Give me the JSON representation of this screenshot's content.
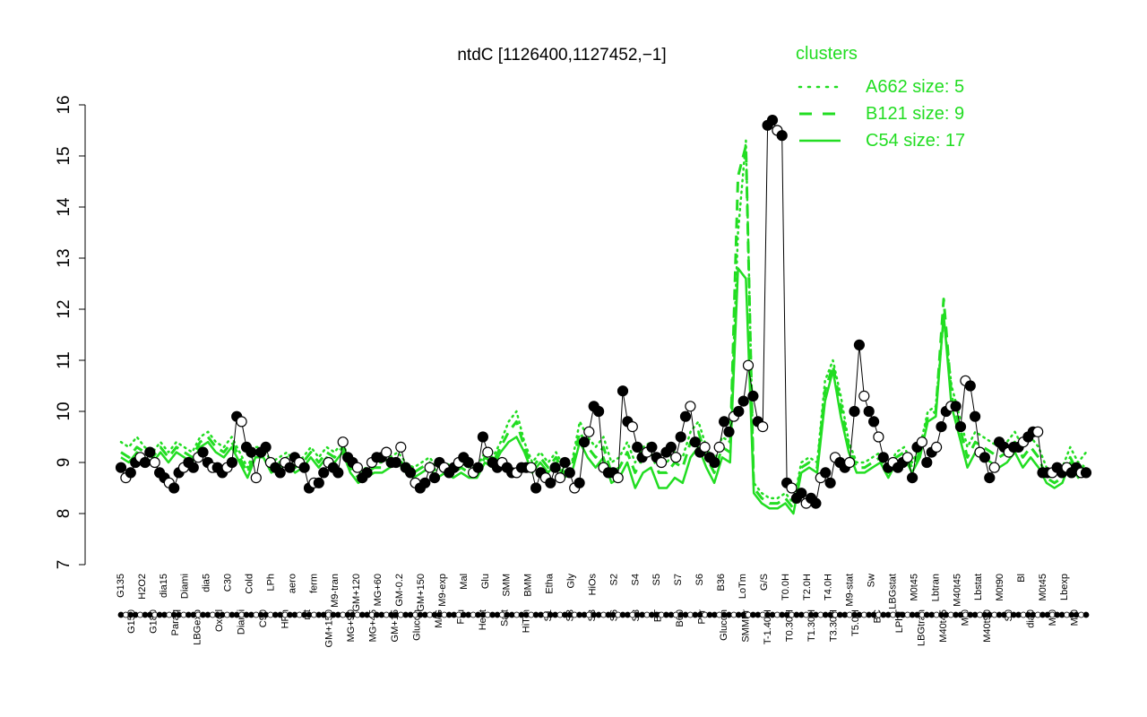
{
  "chart_data": {
    "type": "line",
    "title": "ntdC [1126400,1127452,−1]",
    "xlabel": "",
    "ylabel": "",
    "ylim": [
      7,
      16
    ],
    "yticks": [
      7,
      8,
      9,
      10,
      11,
      12,
      13,
      14,
      15,
      16
    ],
    "grid": false,
    "legend": {
      "title": "clusters",
      "placement": "top-right",
      "entries": [
        {
          "label": "A662 size: 5",
          "style": "dotted"
        },
        {
          "label": "B121 size: 9",
          "style": "dashed"
        },
        {
          "label": "C54 size: 17",
          "style": "solid"
        }
      ]
    },
    "colors": {
      "series": "#22dd22",
      "points": "#000000",
      "legend": "#22dd22"
    },
    "ticks_top": [
      "G135",
      "H2O2",
      "dia15",
      "Diami",
      "dia5",
      "C30",
      "Cold",
      "LPh",
      "aero",
      "ferm",
      "M9-tran",
      "GM+120",
      "MG+60",
      "GM-0.2",
      "GM+150",
      "M9-exp",
      "Mal",
      "Glu",
      "SMM",
      "BMM",
      "Etha",
      "Gly",
      "HiOs",
      "S2",
      "S4",
      "S5",
      "S7",
      "S6",
      "B36",
      "LoTm",
      "G/S",
      "T0.0H",
      "T2.0H",
      "T4.0H",
      "M9-stat",
      "Sw",
      "LBGstat",
      "M0t45",
      "Lbtran",
      "M40t45",
      "Lbstat",
      "M0t90",
      "Bl",
      "M0t45",
      "Lbexp"
    ],
    "ticks_bottom": [
      "G150",
      "G180",
      "Paraq",
      "LBGexp",
      "Oxctl",
      "Diami",
      "C90",
      "HPh",
      "nit",
      "GM+150",
      "MG+90",
      "MG+45",
      "GM+15",
      "Glucon",
      "M/G",
      "Fru",
      "Heat",
      "Salt",
      "HiTm",
      "S1",
      "S3",
      "S3",
      "S6",
      "S8",
      "BT",
      "B60",
      "Pyr",
      "Glucon",
      "SMMPr",
      "T-1.40H",
      "T0.30H",
      "T1.30H",
      "T3.30H",
      "T5.0H",
      "BC",
      "LPhT",
      "LBGtran",
      "M40t45",
      "Mt0",
      "M40t90",
      "S0",
      "dia0",
      "Mt0",
      "Mt0"
    ],
    "series": [
      {
        "name": "A662 size: 5",
        "values": [
          9.4,
          9.3,
          9.5,
          9.3,
          9.2,
          9.4,
          9.2,
          9.4,
          9.3,
          9.2,
          9.5,
          9.6,
          9.4,
          9.3,
          9.5,
          9.2,
          8.9,
          9.3,
          9.3,
          9.0,
          9.1,
          9.2,
          9.0,
          9.1,
          9.3,
          9.1,
          9.3,
          9.2,
          9.4,
          9.0,
          8.8,
          8.9,
          9.0,
          9.0,
          9.1,
          9.2,
          9.0,
          8.9,
          9.0,
          9.1,
          8.9,
          9.0,
          8.9,
          9.0,
          8.9,
          8.9,
          9.2,
          9.1,
          9.4,
          9.8,
          10.0,
          9.4,
          9.0,
          9.2,
          9.0,
          9.2,
          8.9,
          9.0,
          9.8,
          9.5,
          9.3,
          9.5,
          9.0,
          9.1,
          9.4,
          9.0,
          9.3,
          9.4,
          9.0,
          9.0,
          9.2,
          9.1,
          9.6,
          9.8,
          9.3,
          9.0,
          9.5,
          9.4,
          13.5,
          15.3,
          8.6,
          8.4,
          8.3,
          8.3,
          8.4,
          8.2,
          9.0,
          9.1,
          9.0,
          10.6,
          11.0,
          10.3,
          9.4,
          9.0,
          9.0,
          9.1,
          9.2,
          8.9,
          9.2,
          9.3,
          9.0,
          9.3,
          10.0,
          10.1,
          11.8,
          10.5,
          9.9,
          9.3,
          9.6,
          9.5,
          9.4,
          9.3,
          9.4,
          9.6,
          9.3,
          9.5,
          9.3,
          8.9,
          8.8,
          8.9,
          9.3,
          9.0,
          9.2
        ]
      },
      {
        "name": "B121 size: 9",
        "values": [
          9.2,
          9.1,
          9.3,
          9.2,
          9.1,
          9.3,
          9.1,
          9.3,
          9.2,
          9.1,
          9.4,
          9.5,
          9.3,
          9.2,
          9.4,
          9.1,
          8.8,
          9.2,
          9.2,
          8.9,
          9.0,
          9.1,
          8.9,
          9.0,
          9.2,
          9.0,
          9.2,
          9.1,
          9.3,
          8.9,
          8.7,
          8.8,
          8.9,
          8.9,
          9.0,
          9.1,
          8.9,
          8.8,
          8.9,
          9.0,
          8.8,
          8.9,
          8.8,
          8.9,
          8.8,
          8.8,
          9.1,
          9.0,
          9.3,
          9.6,
          9.8,
          9.3,
          8.9,
          9.1,
          8.9,
          9.1,
          8.8,
          8.9,
          9.6,
          9.3,
          9.1,
          9.3,
          8.8,
          8.9,
          9.2,
          8.8,
          9.1,
          9.2,
          8.8,
          8.8,
          9.0,
          8.9,
          9.4,
          9.6,
          9.1,
          8.8,
          9.3,
          9.2,
          14.6,
          15.2,
          8.5,
          8.3,
          8.2,
          8.2,
          8.3,
          8.1,
          8.9,
          9.0,
          8.9,
          10.4,
          10.9,
          10.1,
          9.3,
          8.9,
          8.9,
          9.0,
          9.1,
          8.8,
          9.1,
          9.2,
          8.9,
          9.2,
          9.9,
          10.0,
          12.2,
          10.3,
          9.7,
          9.1,
          9.4,
          9.3,
          9.2,
          9.1,
          9.2,
          9.4,
          9.1,
          9.3,
          9.1,
          8.7,
          8.6,
          8.7,
          9.1,
          8.8,
          9.0
        ]
      },
      {
        "name": "C54 size: 17",
        "values": [
          9.1,
          9.0,
          9.2,
          9.1,
          9.0,
          9.2,
          9.0,
          9.2,
          9.1,
          9.0,
          9.3,
          9.4,
          9.2,
          9.1,
          9.3,
          9.0,
          8.7,
          9.1,
          9.1,
          8.8,
          8.9,
          9.0,
          8.8,
          8.9,
          9.1,
          8.9,
          9.1,
          9.0,
          9.2,
          8.8,
          8.6,
          8.7,
          8.8,
          8.8,
          8.9,
          9.0,
          8.8,
          8.7,
          8.8,
          8.9,
          8.7,
          8.8,
          8.7,
          8.8,
          8.7,
          8.7,
          9.0,
          8.9,
          9.2,
          9.4,
          9.5,
          9.2,
          8.8,
          9.0,
          8.8,
          9.0,
          8.7,
          8.8,
          9.4,
          9.1,
          8.9,
          9.1,
          8.6,
          8.7,
          9.0,
          8.5,
          8.8,
          8.9,
          8.5,
          8.5,
          8.7,
          8.6,
          9.1,
          9.3,
          8.9,
          8.6,
          9.1,
          9.0,
          12.8,
          12.6,
          8.4,
          8.2,
          8.1,
          8.1,
          8.2,
          8.0,
          8.8,
          8.9,
          8.8,
          10.2,
          10.8,
          9.9,
          9.2,
          8.8,
          8.8,
          8.9,
          9.0,
          8.7,
          9.0,
          9.1,
          8.8,
          9.1,
          9.8,
          9.9,
          11.9,
          10.1,
          9.5,
          8.9,
          9.2,
          9.1,
          9.0,
          8.9,
          9.0,
          9.2,
          8.9,
          9.1,
          8.9,
          8.6,
          8.5,
          8.6,
          9.0,
          8.7,
          8.9
        ]
      }
    ],
    "points": [
      8.9,
      8.7,
      8.8,
      9.0,
      9.1,
      9.0,
      9.2,
      9.0,
      8.8,
      8.7,
      8.6,
      8.5,
      8.8,
      8.9,
      9.0,
      8.9,
      9.1,
      9.2,
      9.0,
      8.9,
      8.9,
      8.8,
      8.9,
      9.0,
      9.9,
      9.8,
      9.3,
      9.2,
      8.7,
      9.2,
      9.3,
      9.0,
      8.9,
      8.8,
      9.0,
      8.9,
      9.1,
      9.0,
      8.9,
      8.5,
      8.6,
      8.6,
      8.8,
      9.0,
      8.9,
      8.8,
      9.4,
      9.1,
      9.0,
      8.9,
      8.7,
      8.8,
      9.0,
      9.1,
      9.1,
      9.2,
      9.0,
      9.0,
      9.3,
      8.9,
      8.8,
      8.6,
      8.5,
      8.6,
      8.9,
      8.7,
      9.0,
      8.9,
      8.8,
      8.9,
      9.0,
      9.1,
      9.0,
      8.8,
      8.9,
      9.5,
      9.2,
      9.0,
      8.9,
      9.0,
      8.9,
      8.8,
      8.8,
      8.9,
      8.9,
      8.9,
      8.5,
      8.8,
      8.7,
      8.6,
      8.9,
      8.7,
      9.0,
      8.8,
      8.5,
      8.6,
      9.4,
      9.6,
      10.1,
      10.0,
      8.9,
      8.8,
      8.8,
      8.7,
      10.4,
      9.8,
      9.7,
      9.3,
      9.1,
      9.2,
      9.3,
      9.1,
      9.0,
      9.2,
      9.3,
      9.1,
      9.5,
      9.9,
      10.1,
      9.4,
      9.2,
      9.3,
      9.1,
      9.0,
      9.3,
      9.8,
      9.6,
      9.9,
      10.0,
      10.2,
      10.9,
      10.3,
      9.8,
      9.7,
      15.6,
      15.7,
      15.5,
      15.4,
      8.6,
      8.5,
      8.3,
      8.4,
      8.2,
      8.3,
      8.2,
      8.7,
      8.8,
      8.6,
      9.1,
      9.0,
      8.9,
      9.0,
      10.0,
      11.3,
      10.3,
      10.0,
      9.8,
      9.5,
      9.1,
      8.9,
      9.0,
      8.9,
      9.0,
      9.1,
      8.7,
      9.3,
      9.4,
      9.0,
      9.2,
      9.3,
      9.7,
      10.0,
      10.1,
      10.1,
      9.7,
      10.6,
      10.5,
      9.9,
      9.2,
      9.1,
      8.7,
      8.9,
      9.4,
      9.3,
      9.2,
      9.3,
      9.3,
      9.4,
      9.5,
      9.6,
      9.6,
      8.8,
      8.8,
      8.8,
      8.9,
      8.8,
      8.9,
      8.8,
      8.9,
      8.8,
      8.8
    ]
  }
}
